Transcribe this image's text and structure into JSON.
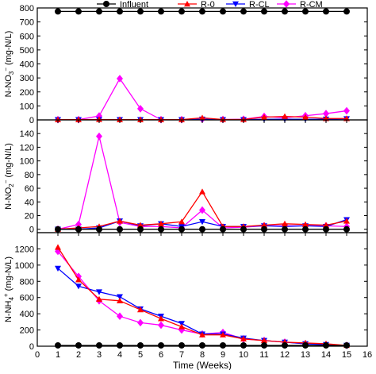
{
  "legend": [
    {
      "name": "Influent",
      "color": "#000000",
      "marker": "circle"
    },
    {
      "name": "R-0",
      "color": "#ff0000",
      "marker": "triangle-up"
    },
    {
      "name": "R-CL",
      "color": "#0000ff",
      "marker": "triangle-down"
    },
    {
      "name": "R-CM",
      "color": "#ff00ff",
      "marker": "diamond"
    }
  ],
  "chart_data": [
    {
      "type": "line",
      "ylabel_main": "N-NO",
      "ylabel_sub": "3",
      "ylabel_sup": "−",
      "ylabel_unit": " (mg-N/L)",
      "ylim": [
        0,
        800
      ],
      "yticks": [
        0,
        100,
        200,
        300,
        400,
        500,
        600,
        700,
        800
      ],
      "x": [
        1,
        2,
        3,
        4,
        5,
        6,
        7,
        8,
        9,
        10,
        11,
        12,
        13,
        14,
        15
      ],
      "series": [
        {
          "name": "Influent",
          "values": [
            775,
            775,
            775,
            775,
            775,
            775,
            775,
            775,
            775,
            775,
            775,
            775,
            775,
            775,
            775
          ]
        },
        {
          "name": "R-0",
          "values": [
            2,
            2,
            3,
            2,
            2,
            2,
            2,
            15,
            3,
            3,
            20,
            25,
            20,
            10,
            10
          ]
        },
        {
          "name": "R-CL",
          "values": [
            2,
            2,
            2,
            2,
            2,
            2,
            2,
            5,
            2,
            2,
            5,
            5,
            5,
            5,
            8
          ]
        },
        {
          "name": "R-CM",
          "values": [
            2,
            2,
            28,
            295,
            80,
            2,
            2,
            5,
            3,
            5,
            25,
            15,
            30,
            45,
            65
          ]
        }
      ]
    },
    {
      "type": "line",
      "ylabel_main": "N-NO",
      "ylabel_sub": "2",
      "ylabel_sup": "−",
      "ylabel_unit": " (mg-N/L)",
      "ylim": [
        -5,
        160
      ],
      "yticks": [
        0,
        20,
        40,
        60,
        80,
        100,
        120,
        140
      ],
      "x": [
        1,
        2,
        3,
        4,
        5,
        6,
        7,
        8,
        9,
        10,
        11,
        12,
        13,
        14,
        15
      ],
      "series": [
        {
          "name": "Influent",
          "values": [
            0,
            0,
            0,
            0,
            0,
            0,
            0,
            0,
            0,
            0,
            0,
            0,
            0,
            0,
            0
          ]
        },
        {
          "name": "R-0",
          "values": [
            0,
            2,
            4,
            12,
            6,
            8,
            11,
            55,
            4,
            4,
            6,
            8,
            7,
            6,
            12
          ]
        },
        {
          "name": "R-CL",
          "values": [
            0,
            0,
            2,
            12,
            5,
            8,
            4,
            11,
            4,
            4,
            5,
            4,
            5,
            4,
            14
          ]
        },
        {
          "name": "R-CM",
          "values": [
            0,
            7,
            136,
            10,
            4,
            4,
            2,
            28,
            2,
            3,
            5,
            5,
            5,
            5,
            4
          ]
        }
      ]
    },
    {
      "type": "line",
      "ylabel_main": "N-NH",
      "ylabel_sub": "4",
      "ylabel_sup": "+",
      "ylabel_unit": " (mg-N/L)",
      "ylim": [
        0,
        1400
      ],
      "yticks": [
        0,
        200,
        400,
        600,
        800,
        1000,
        1200
      ],
      "x": [
        1,
        2,
        3,
        4,
        5,
        6,
        7,
        8,
        9,
        10,
        11,
        12,
        13,
        14,
        15
      ],
      "xlabel": "Time (Weeks)",
      "xlim": [
        0,
        16
      ],
      "xticks": [
        0,
        1,
        2,
        3,
        4,
        5,
        6,
        7,
        8,
        9,
        10,
        11,
        12,
        13,
        14,
        15,
        16
      ],
      "series": [
        {
          "name": "Influent",
          "values": [
            10,
            10,
            10,
            10,
            10,
            10,
            10,
            10,
            10,
            10,
            10,
            10,
            10,
            10,
            10
          ]
        },
        {
          "name": "R-0",
          "values": [
            1220,
            820,
            580,
            560,
            450,
            340,
            240,
            140,
            140,
            90,
            70,
            50,
            40,
            30,
            10
          ]
        },
        {
          "name": "R-CL",
          "values": [
            960,
            740,
            670,
            610,
            460,
            370,
            280,
            150,
            150,
            100,
            70,
            50,
            30,
            20,
            10
          ]
        },
        {
          "name": "R-CM",
          "values": [
            1170,
            860,
            560,
            370,
            290,
            260,
            200,
            150,
            170,
            90,
            70,
            50,
            30,
            20,
            10
          ]
        }
      ]
    }
  ]
}
